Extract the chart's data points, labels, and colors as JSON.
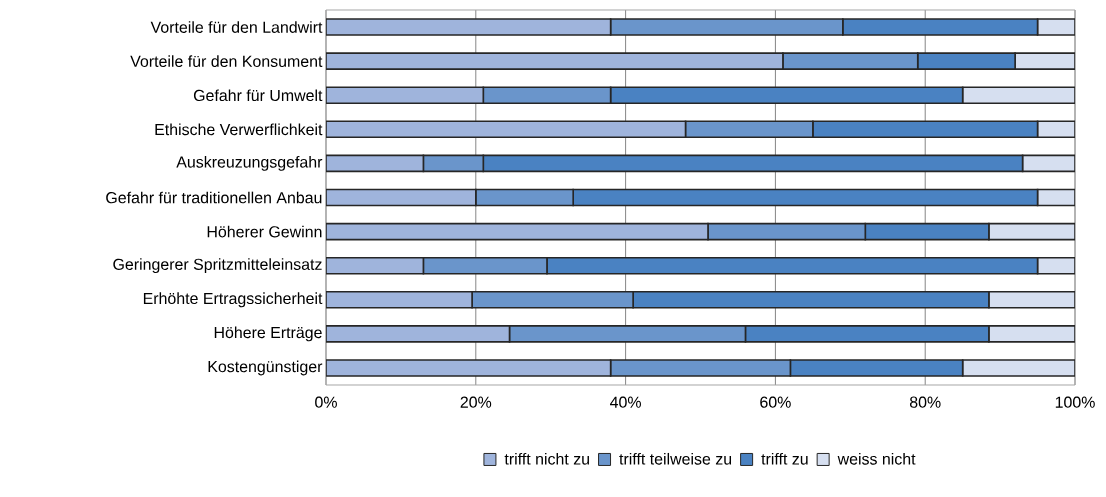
{
  "chart_data": {
    "type": "bar",
    "orientation": "horizontal",
    "stacked": true,
    "categories": [
      "Vorteile für den Landwirt",
      "Vorteile für den Konsument",
      "Gefahr für Umwelt",
      "Ethische Verwerflichkeit",
      "Auskreuzungsgefahr",
      "Gefahr für traditionellen Anbau",
      "Höherer Gewinn",
      "Geringerer Spritzmitteleinsatz",
      "Erhöhte Ertragssicherheit",
      "Höhere Erträge",
      "Kostengünstiger"
    ],
    "series": [
      {
        "name": "trifft nicht zu",
        "color": "#9fb4dc",
        "values": [
          38,
          61,
          21,
          48,
          13,
          20,
          51,
          13,
          19.5,
          24.5,
          38
        ]
      },
      {
        "name": "trifft teilweise zu",
        "color": "#6a95cb",
        "values": [
          31,
          18,
          17,
          17,
          8,
          13,
          21,
          16.5,
          21.5,
          31.5,
          24
        ]
      },
      {
        "name": "trifft zu",
        "color": "#4a82c2",
        "values": [
          26,
          13,
          47,
          30,
          72,
          62,
          16.5,
          65.5,
          47.5,
          32.5,
          23
        ]
      },
      {
        "name": "weiss nicht",
        "color": "#d6dff0",
        "values": [
          5,
          8,
          15,
          5,
          7,
          5,
          11.5,
          5,
          11.5,
          11.5,
          15
        ]
      }
    ],
    "xlim": [
      0,
      100
    ],
    "xticks": [
      {
        "value": 0,
        "label": "0%"
      },
      {
        "value": 20,
        "label": "20%"
      },
      {
        "value": 40,
        "label": "40%"
      },
      {
        "value": 60,
        "label": "60%"
      },
      {
        "value": 80,
        "label": "80%"
      },
      {
        "value": 100,
        "label": "100%"
      }
    ],
    "grid": "x",
    "legend": "bottom"
  }
}
